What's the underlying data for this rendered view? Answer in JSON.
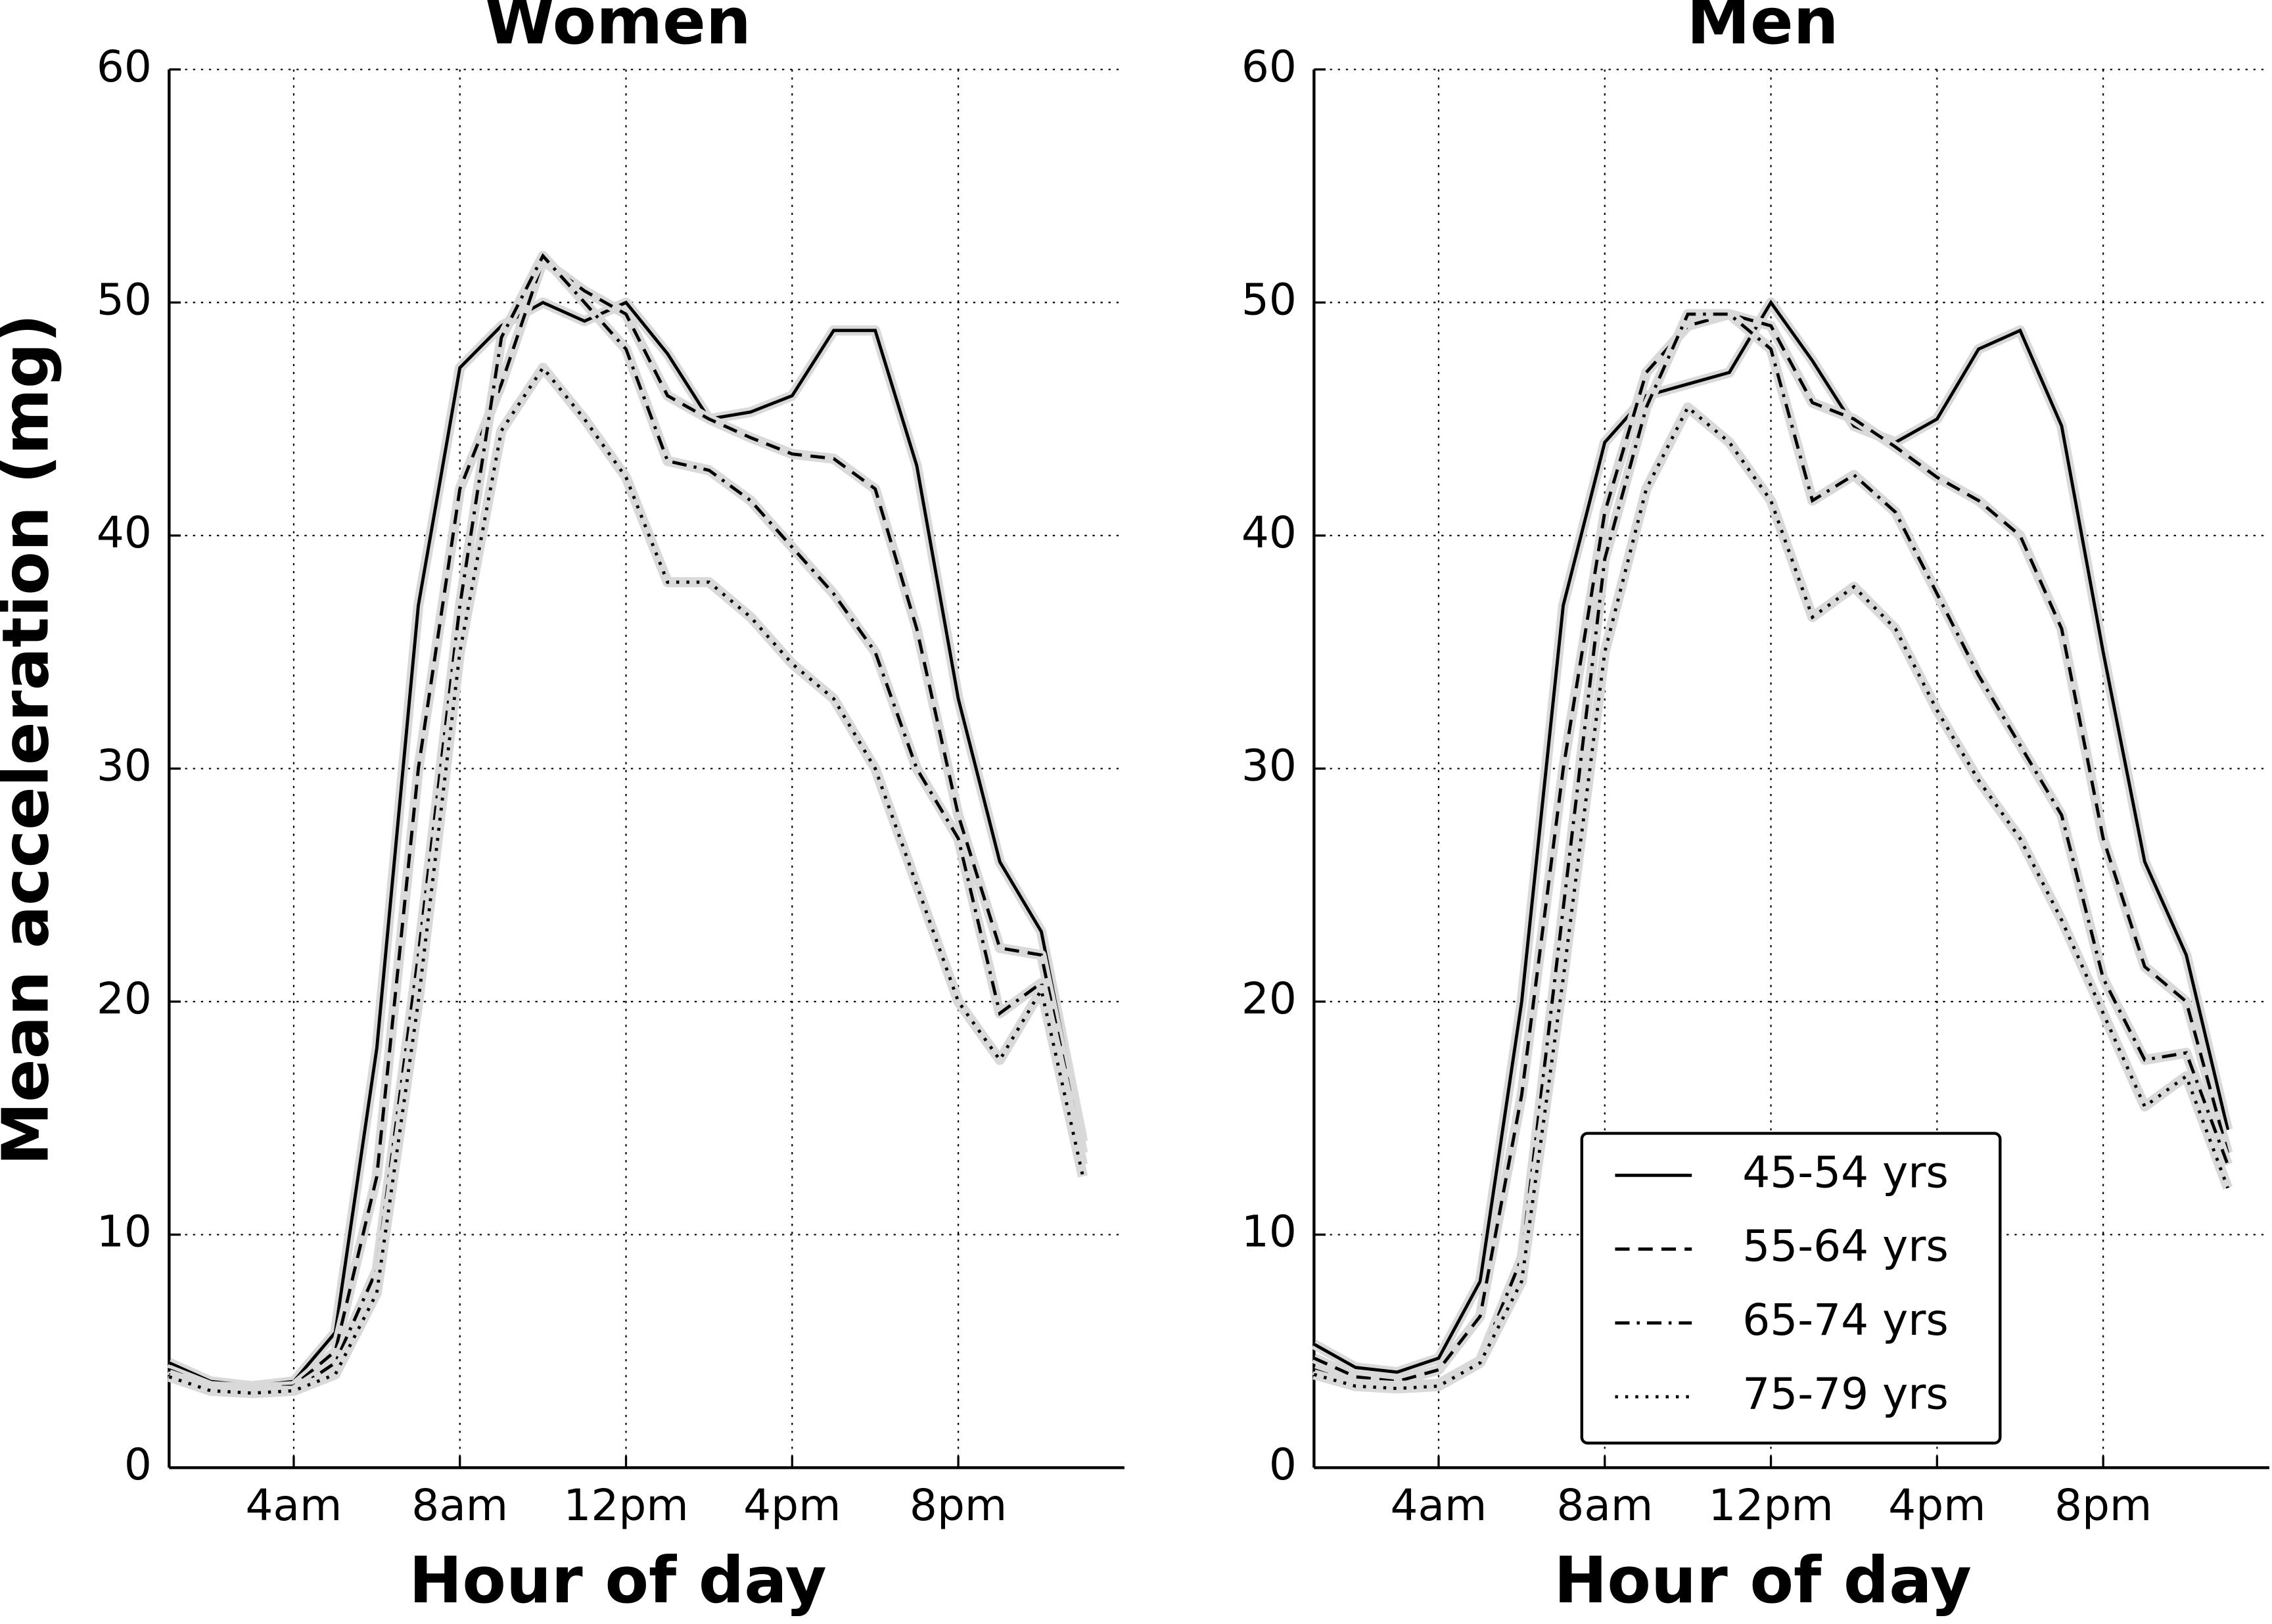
{
  "chart_data": [
    {
      "type": "line",
      "title": "Women",
      "xlabel": "Hour of day",
      "ylabel": "Mean acceleration (mg)",
      "x": [
        1,
        2,
        3,
        4,
        5,
        6,
        7,
        8,
        9,
        10,
        11,
        12,
        13,
        14,
        15,
        16,
        17,
        18,
        19,
        20,
        21,
        22,
        23
      ],
      "xlim": [
        1,
        24
      ],
      "ylim": [
        0,
        60
      ],
      "xticks": [
        {
          "value": 4,
          "label": "4am"
        },
        {
          "value": 8,
          "label": "8am"
        },
        {
          "value": 12,
          "label": "12pm"
        },
        {
          "value": 16,
          "label": "4pm"
        },
        {
          "value": 20,
          "label": "8pm"
        }
      ],
      "yticks": [
        0,
        10,
        20,
        30,
        40,
        50,
        60
      ],
      "grid": true,
      "series": [
        {
          "name": "45-54 yrs",
          "color": "#000000",
          "linestyle": "solid",
          "values": [
            4.5,
            3.7,
            3.5,
            3.7,
            5.8,
            18,
            37,
            47.2,
            49,
            50,
            49.2,
            50,
            47.8,
            45,
            45.3,
            46,
            48.8,
            48.8,
            43,
            33,
            26,
            23,
            14
          ]
        },
        {
          "name": "55-64 yrs",
          "color": "#000000",
          "linestyle": "dashed",
          "values": [
            4.2,
            3.5,
            3.4,
            3.5,
            5,
            12.5,
            30,
            42,
            46.5,
            51.8,
            50.5,
            49.5,
            46,
            45,
            44.2,
            43.5,
            43.3,
            42,
            36,
            28,
            22.3,
            22,
            13.5
          ]
        },
        {
          "name": "65-74 yrs",
          "color": "#000000",
          "linestyle": "dashdot",
          "values": [
            4,
            3.4,
            3.3,
            3.3,
            4.5,
            8.5,
            22,
            37,
            48.5,
            52,
            50,
            48,
            43.2,
            42.8,
            41.5,
            39.5,
            37.5,
            35,
            30,
            27,
            19.5,
            20.8,
            13
          ]
        },
        {
          "name": "75-79 yrs",
          "color": "#000000",
          "linestyle": "dotted",
          "values": [
            3.9,
            3.3,
            3.2,
            3.3,
            4,
            7.5,
            20,
            35,
            44.5,
            47.2,
            45,
            42.5,
            38,
            38,
            36.5,
            34.5,
            33,
            30,
            25,
            20,
            17.5,
            20.5,
            12.5
          ]
        }
      ]
    },
    {
      "type": "line",
      "title": "Men",
      "xlabel": "Hour of day",
      "x": [
        1,
        2,
        3,
        4,
        5,
        6,
        7,
        8,
        9,
        10,
        11,
        12,
        13,
        14,
        15,
        16,
        17,
        18,
        19,
        20,
        21,
        22,
        23
      ],
      "xlim": [
        1,
        24
      ],
      "ylim": [
        0,
        60
      ],
      "xticks": [
        {
          "value": 4,
          "label": "4am"
        },
        {
          "value": 8,
          "label": "8am"
        },
        {
          "value": 12,
          "label": "12pm"
        },
        {
          "value": 16,
          "label": "4pm"
        },
        {
          "value": 20,
          "label": "8pm"
        }
      ],
      "yticks": [
        0,
        10,
        20,
        30,
        40,
        50,
        60
      ],
      "grid": true,
      "legend": "lower center",
      "series": [
        {
          "name": "45-54 yrs",
          "color": "#000000",
          "linestyle": "solid",
          "values": [
            5.3,
            4.3,
            4.1,
            4.7,
            8,
            20,
            37,
            44,
            46,
            46.5,
            47,
            50,
            47.5,
            44.7,
            44,
            45,
            48,
            48.8,
            44.7,
            35,
            26,
            22,
            14.5
          ]
        },
        {
          "name": "55-64 yrs",
          "color": "#000000",
          "linestyle": "dashed",
          "values": [
            4.7,
            3.9,
            3.7,
            4.2,
            6.5,
            16,
            30,
            41,
            47,
            49,
            49.5,
            49,
            45.7,
            45,
            43.8,
            42.5,
            41.5,
            40,
            36,
            27,
            21.5,
            20,
            13.5
          ]
        },
        {
          "name": "65-74 yrs",
          "color": "#000000",
          "linestyle": "dashdot",
          "values": [
            4.2,
            3.6,
            3.5,
            3.6,
            4.6,
            9,
            24,
            39,
            45.5,
            49.5,
            49.5,
            48,
            41.5,
            42.6,
            41,
            37.5,
            34,
            31,
            28,
            21,
            17.5,
            17.8,
            13
          ]
        },
        {
          "name": "75-79 yrs",
          "color": "#000000",
          "linestyle": "dotted",
          "values": [
            4,
            3.5,
            3.4,
            3.5,
            4.5,
            8,
            21,
            35,
            42,
            45.5,
            44,
            41.5,
            36.5,
            37.8,
            36,
            32.5,
            29.5,
            27,
            23.5,
            19.5,
            15.5,
            16.8,
            12
          ]
        }
      ]
    }
  ]
}
